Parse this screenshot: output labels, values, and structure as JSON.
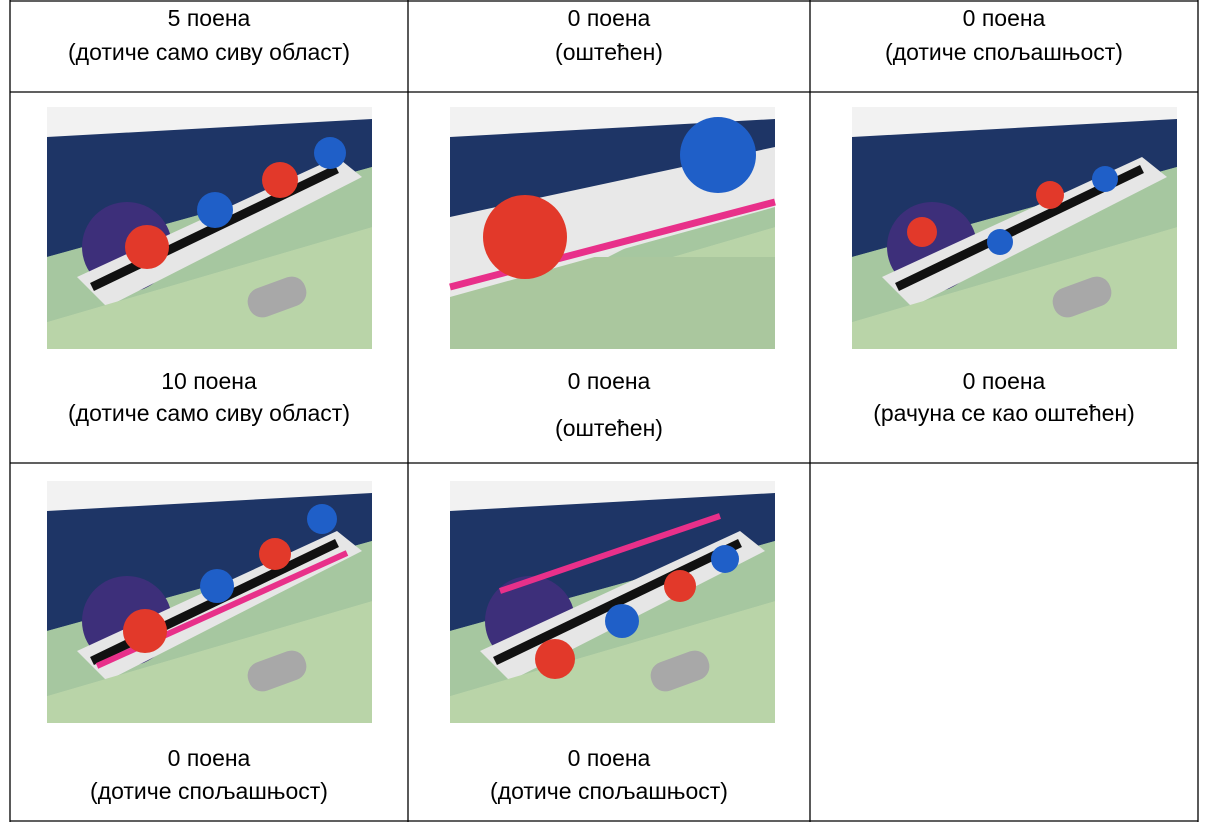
{
  "table": {
    "rows": [
      [
        {
          "lines": [
            "5 поена",
            "(дотиче само сиву област)"
          ]
        },
        {
          "lines": [
            "0 поена",
            "(оштећен)"
          ]
        },
        {
          "lines": [
            "0 поена",
            "(дотиче спољашњост)"
          ]
        }
      ],
      [
        {
          "lines": [
            "10 поена",
            "(дотиче само сиву област)"
          ]
        },
        {
          "lines": [
            "0 поена",
            "(оштећен)"
          ]
        },
        {
          "lines": [
            "0 поена",
            "(рачуна се као оштећен)"
          ]
        }
      ],
      [
        {
          "lines": [
            "0 поена",
            "(дотиче спољашњост)"
          ]
        },
        {
          "lines": [
            "0 поена",
            "(дотиче спољашњост)"
          ]
        }
      ]
    ]
  }
}
